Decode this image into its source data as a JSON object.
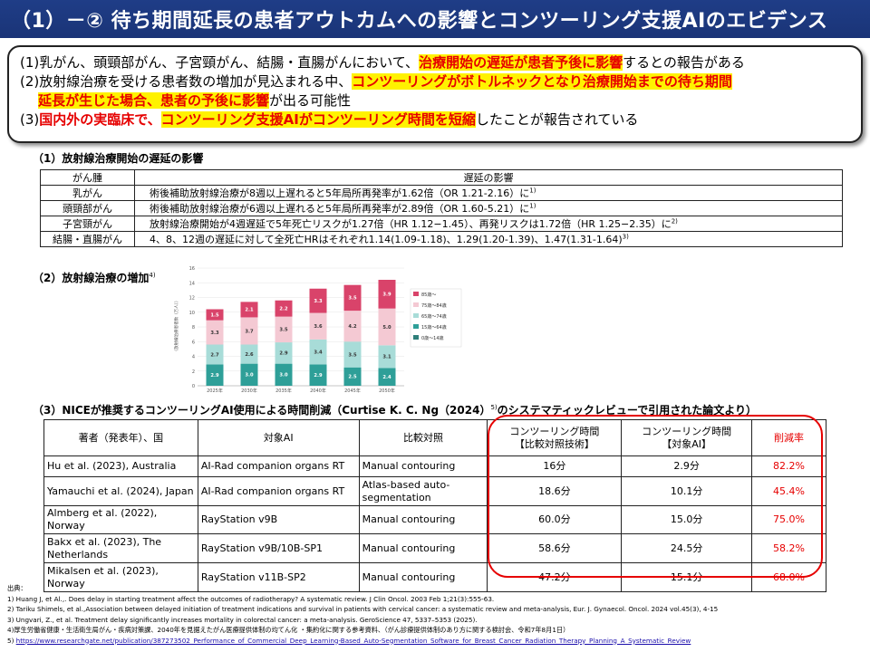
{
  "header": {
    "title": "（1）－②  待ち期間延長の患者アウトカムへの影響とコンツーリング支援AIのエビデンス"
  },
  "summary": {
    "l1_a": "(1)乳がん、頭頸部がん、子宮頸がん、結腸・直腸がんにおいて、",
    "l1_hl": "治療開始の遅延が患者予後に影響",
    "l1_b": "するとの報告がある",
    "l2_a": "(2)放射線治療を受ける患者数の増加が見込まれる中、",
    "l2_hl": "コンツーリングがボトルネックとなり治療開始までの待ち期間",
    "l3_hl": "延長が生じた場合、患者の予後に影響",
    "l3_b": "が出る可能性",
    "l4_a": "(3)",
    "l4_red": "国内外の実臨床で、",
    "l4_hl": "コンツーリング支援AIがコンツーリング時間を短縮",
    "l4_b": "したことが報告されている"
  },
  "section1": {
    "title": "（1）放射線治療開始の遅延の影響",
    "headers": [
      "がん腫",
      "遅延の影響"
    ],
    "rows": [
      {
        "type": "乳がん",
        "text": "術後補助放射線治療が8週以上遅れると5年局所再発率が1.62倍（OR 1.21-2.16）に",
        "ref": "1)"
      },
      {
        "type": "頭頸部がん",
        "text": "術後補助放射線治療が6週以上遅れると5年局所再発率が2.89倍（OR 1.60-5.21）に",
        "ref": "1)"
      },
      {
        "type": "子宮頸がん",
        "text": "放射線治療開始が4週遅延で5年死亡リスクが1.27倍（HR 1.12−1.45）、再発リスクは1.72倍（HR 1.25−2.35）に",
        "ref": "2)"
      },
      {
        "type": "結腸・直腸がん",
        "text": "4、8、12週の遅延に対して全死亡HRはそれぞれ1.14(1.09-1.18)、1.29(1.20-1.39)、1.47(1.31-1.64)",
        "ref": "3)"
      }
    ]
  },
  "section2": {
    "title": "（2）放射線治療の増加",
    "ref": "4)"
  },
  "chart_data": {
    "type": "bar",
    "stacked": true,
    "categories": [
      "2025年",
      "2030年",
      "2035年",
      "2040年",
      "2045年",
      "2050年"
    ],
    "ylabel": "（放射線治療患者数（万人））",
    "ylim": [
      0,
      16
    ],
    "yticks": [
      0,
      2,
      4,
      6,
      8,
      10,
      12,
      14,
      16
    ],
    "series": [
      {
        "name": "0歳～14歳",
        "color": "#2e7f7a",
        "values": [
          0.0,
          0.0,
          0.0,
          0.0,
          0.0,
          0.0
        ]
      },
      {
        "name": "15歳～64歳",
        "color": "#2e9f98",
        "values": [
          2.9,
          3.0,
          3.0,
          2.9,
          2.5,
          2.4
        ]
      },
      {
        "name": "65歳～74歳",
        "color": "#a8dcd8",
        "values": [
          2.7,
          2.6,
          2.9,
          3.4,
          3.5,
          3.1
        ]
      },
      {
        "name": "75歳～84歳",
        "color": "#f4c9d3",
        "values": [
          3.3,
          3.7,
          3.5,
          3.6,
          4.2,
          5.0
        ]
      },
      {
        "name": "85歳～",
        "color": "#d9436a",
        "values": [
          1.5,
          2.1,
          2.2,
          3.3,
          3.5,
          3.9
        ]
      }
    ],
    "labels": {
      "s0": [
        "0.0",
        "0.0",
        "0.0",
        "0.0",
        "0.0",
        "0.0"
      ],
      "s1": [
        "2.9",
        "3.0",
        "3.0",
        "2.9",
        "2.5",
        "2.4"
      ],
      "s2": [
        "2.7",
        "2.6",
        "2.9",
        "3.4",
        "3.5",
        "3.1"
      ],
      "s3": [
        "3.3",
        "3.7",
        "3.5",
        "3.6",
        "4.2",
        "5.0"
      ],
      "s4": [
        "1.5",
        "2.1",
        "2.2",
        "3.3",
        "3.5",
        "3.9"
      ]
    },
    "legend_position": "right"
  },
  "section3": {
    "title_a": "（3）NICEが推奨するコンツーリングAI使用による時間削減（Curtise K. C. Ng（2024）",
    "title_ref": "5)",
    "title_b": "のシステマティックレビューで引用された論文より）",
    "headers": {
      "author": "著者（発表年）、国",
      "ai": "対象AI",
      "control": "比較対照",
      "t_control_1": "コンツーリング時間",
      "t_control_2": "【比較対照技術】",
      "t_ai_1": "コンツーリング時間",
      "t_ai_2": "【対象AI】",
      "rate": "削減率"
    },
    "rows": [
      {
        "author": "Hu et al. (2023), Australia",
        "ai": "AI-Rad companion organs RT",
        "control": "Manual contouring",
        "t_control": "16分",
        "t_ai": "2.9分",
        "rate": "82.2%"
      },
      {
        "author": "Yamauchi et al. (2024), Japan",
        "ai": "AI-Rad companion organs RT",
        "control": "Atlas-based auto-segmentation",
        "t_control": "18.6分",
        "t_ai": "10.1分",
        "rate": "45.4%"
      },
      {
        "author": "Almberg et al. (2022), Norway",
        "ai": "RayStation v9B",
        "control": "Manual contouring",
        "t_control": "60.0分",
        "t_ai": "15.0分",
        "rate": "75.0%"
      },
      {
        "author": "Bakx et al. (2023), The Netherlands",
        "ai": "RayStation v9B/10B-SP1",
        "control": "Manual contouring",
        "t_control": "58.6分",
        "t_ai": "24.5分",
        "rate": "58.2%"
      },
      {
        "author": "Mikalsen et al. (2023), Norway",
        "ai": "RayStation v11B-SP2",
        "control": "Manual contouring",
        "t_control": "47.2分",
        "t_ai": "15.1分",
        "rate": "68.0%"
      }
    ]
  },
  "sources": {
    "heading": "出典：",
    "items": [
      "1) Huang J, et Al.,. Does delay in starting treatment affect the outcomes of radiotherapy? A systematic review. J Clin Oncol. 2003 Feb 1;21(3):555-63.",
      "2) Tariku Shimels, et al.,Association between delayed initiation of treatment indications and survival in patients with cervical cancer: a systematic review and meta-analysis, Eur. J. Gynaecol. Oncol. 2024 vol.45(3), 4-15",
      "3) Ungvari, Z., et al. Treatment delay significantly increases mortality in colorectal cancer: a meta-analysis. GeroScience 47, 5337–5353 (2025).",
      "4)厚生労働省健康・生活衛生局がん・疾病対策課、2040年を見据えたがん医療提供体制の均てん化 ・集約化に関する参考資料、（がん診療提供体制のあり方に関する検討会、令和7年8月1日）"
    ],
    "item5_prefix": "5) ",
    "item5_link": "https://www.researchgate.net/publication/387273502_Performance_of_Commercial_Deep_Learning-Based_Auto-Segmentation_Software_for_Breast_Cancer_Radiation_Therapy_Planning_A_Systematic_Review"
  }
}
